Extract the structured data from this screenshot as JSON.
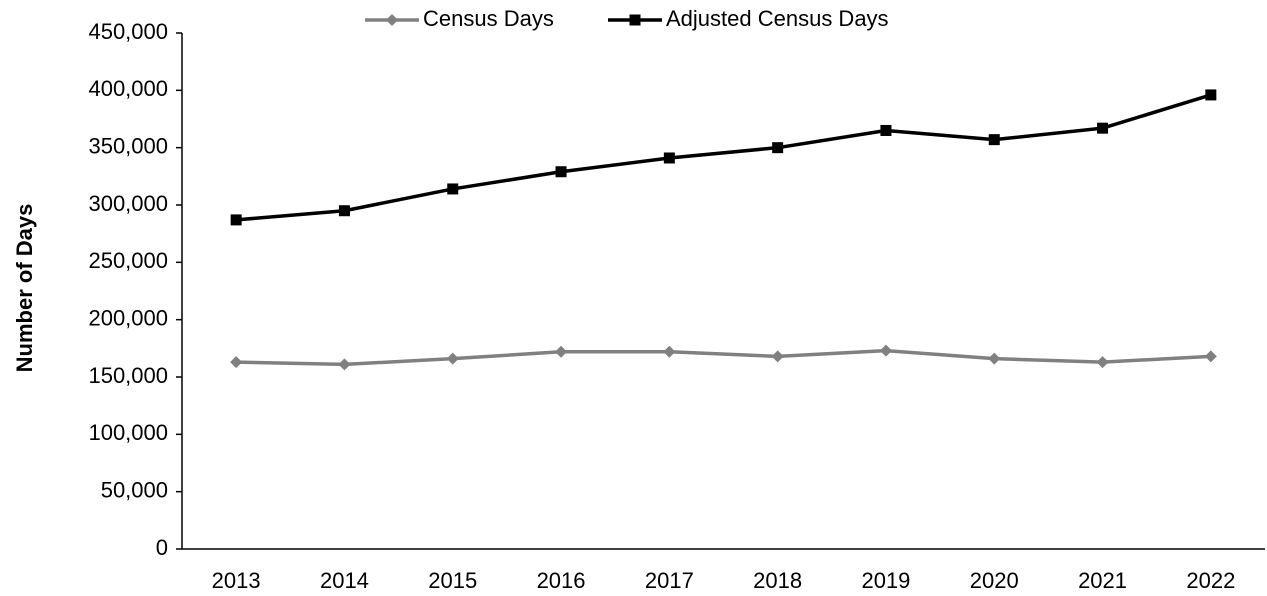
{
  "chart_data": {
    "type": "line",
    "y_label": "Number of Days",
    "categories": [
      "2013",
      "2014",
      "2015",
      "2016",
      "2017",
      "2018",
      "2019",
      "2020",
      "2021",
      "2022"
    ],
    "series": [
      {
        "name": "Census Days",
        "color": "#808080",
        "marker": "diamond",
        "values": [
          163000,
          161000,
          166000,
          172000,
          172000,
          168000,
          173000,
          166000,
          163000,
          168000
        ]
      },
      {
        "name": "Adjusted Census Days",
        "color": "#000000",
        "marker": "square",
        "values": [
          287000,
          295000,
          314000,
          329000,
          341000,
          350000,
          365000,
          357000,
          367000,
          396000
        ]
      }
    ],
    "ylim": [
      0,
      450000
    ],
    "yticks": [
      0,
      {
        "value": 50000,
        "label": "50,000"
      },
      {
        "value": 100000,
        "label": "100,000"
      },
      {
        "value": 150000,
        "label": "150,000"
      },
      {
        "value": 200000,
        "label": "200,000"
      },
      {
        "value": 250000,
        "label": "250,000"
      },
      {
        "value": 300000,
        "label": "300,000"
      },
      {
        "value": 350000,
        "label": "350,000"
      },
      {
        "value": 400000,
        "label": "400,000"
      },
      {
        "value": 450000,
        "label": "450,000"
      }
    ],
    "grid": false,
    "legend": "top"
  }
}
